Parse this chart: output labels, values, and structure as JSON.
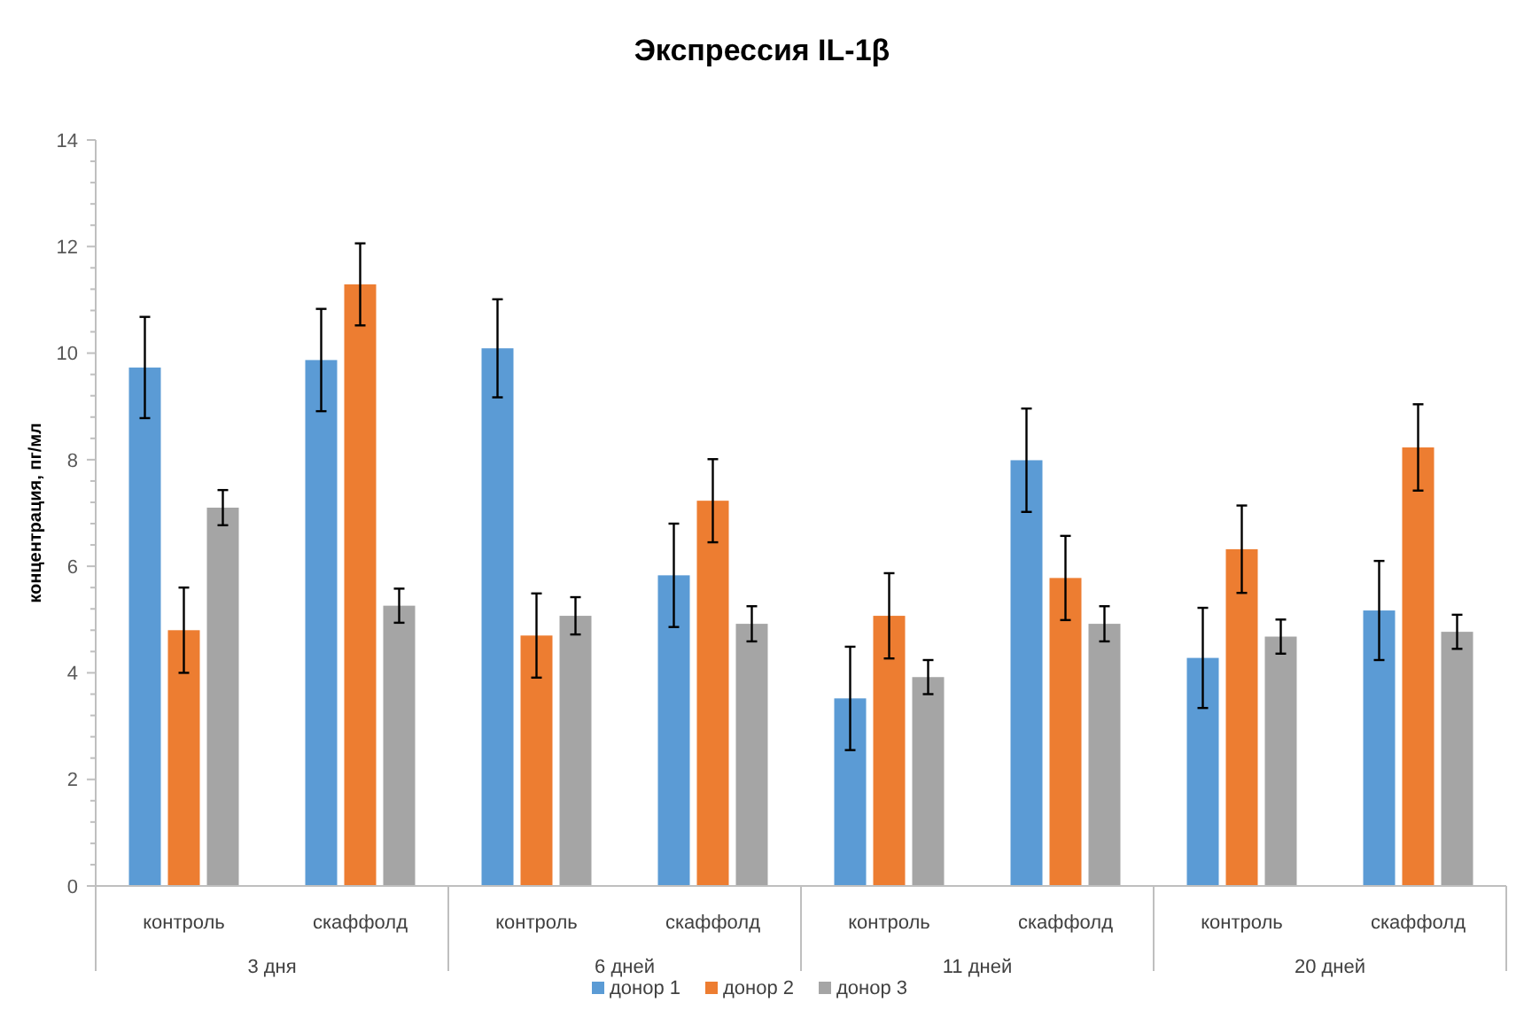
{
  "chart_data": {
    "type": "bar",
    "title": "Экспрессия IL-1β",
    "ylabel": "концентрация, пг/мл",
    "categories": [
      "контроль",
      "скаффолд",
      "контроль",
      "скаффолд",
      "контроль",
      "скаффолд",
      "контроль",
      "скаффолд"
    ],
    "annotations": [
      "3 дня",
      "6 дней",
      "11 дней",
      "20 дней"
    ],
    "series": [
      {
        "name": "донор 1",
        "color": "#5b9bd5",
        "values": [
          9.73,
          9.87,
          10.09,
          5.83,
          3.52,
          7.99,
          4.28,
          5.17
        ],
        "errors": [
          0.95,
          0.96,
          0.92,
          0.97,
          0.97,
          0.97,
          0.94,
          0.93
        ]
      },
      {
        "name": "донор 2",
        "color": "#ed7d31",
        "values": [
          4.8,
          11.29,
          4.7,
          7.23,
          5.07,
          5.78,
          6.32,
          8.23
        ],
        "errors": [
          0.8,
          0.77,
          0.79,
          0.78,
          0.8,
          0.79,
          0.82,
          0.81
        ]
      },
      {
        "name": "донор 3",
        "color": "#a5a5a5",
        "values": [
          7.1,
          5.26,
          5.07,
          4.92,
          3.92,
          4.92,
          4.68,
          4.77
        ],
        "errors": [
          0.33,
          0.32,
          0.35,
          0.33,
          0.32,
          0.33,
          0.32,
          0.32
        ]
      }
    ],
    "ylim": [
      0,
      14
    ],
    "yticks": [
      0,
      {
        "value": 0.4,
        "label": null
      },
      {
        "value": 0.8,
        "label": null
      },
      {
        "value": 1.2,
        "label": null
      },
      {
        "value": 1.6,
        "label": null
      },
      2,
      {
        "value": 2.4,
        "label": null
      },
      {
        "value": 2.8,
        "label": null
      },
      {
        "value": 3.2,
        "label": null
      },
      {
        "value": 3.6,
        "label": null
      },
      4,
      {
        "value": 4.4,
        "label": null
      },
      {
        "value": 4.8,
        "label": null
      },
      {
        "value": 5.2,
        "label": null
      },
      {
        "value": 5.6,
        "label": null
      },
      6,
      {
        "value": 6.4,
        "label": null
      },
      {
        "value": 6.8,
        "label": null
      },
      {
        "value": 7.2,
        "label": null
      },
      {
        "value": 7.6,
        "label": null
      },
      8,
      {
        "value": 8.4,
        "label": null
      },
      {
        "value": 8.8,
        "label": null
      },
      {
        "value": 9.2,
        "label": null
      },
      {
        "value": 9.6,
        "label": null
      },
      10,
      {
        "value": 10.4,
        "label": null
      },
      {
        "value": 10.8,
        "label": null
      },
      {
        "value": 11.2,
        "label": null
      },
      {
        "value": 11.6,
        "label": null
      },
      12,
      {
        "value": 12.4,
        "label": null
      },
      {
        "value": 12.8,
        "label": null
      },
      {
        "value": 13.2,
        "label": null
      },
      {
        "value": 13.6,
        "label": null
      },
      14
    ],
    "grid": false,
    "legend": "bottom"
  }
}
